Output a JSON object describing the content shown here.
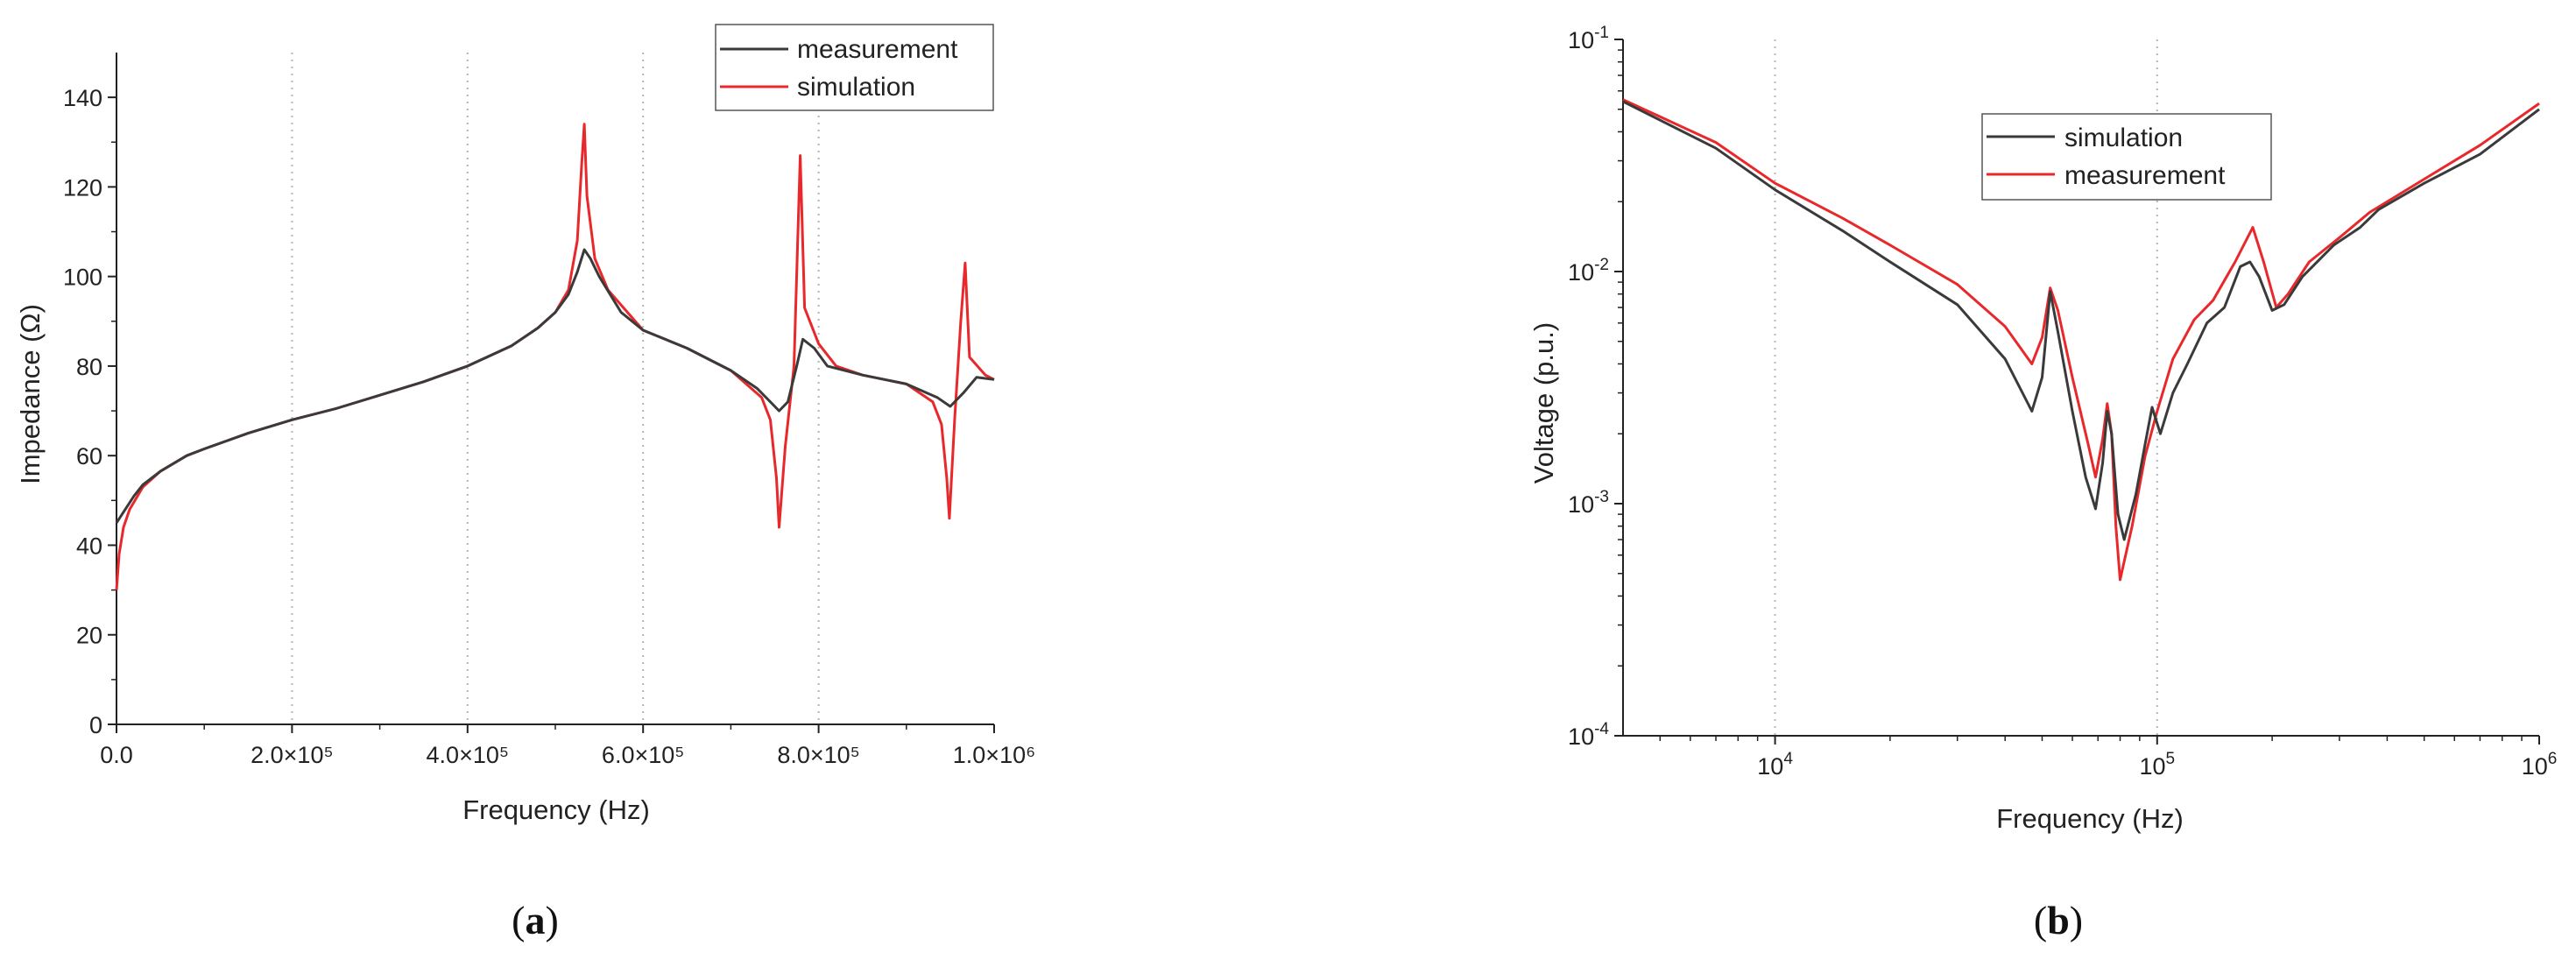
{
  "chart_data": [
    {
      "type": "line",
      "panel_label": "a",
      "xlabel": "Frequency (Hz)",
      "ylabel": "Impedance (Ω)",
      "xlim": [
        0,
        1000000
      ],
      "ylim": [
        0,
        150
      ],
      "xscale": "linear",
      "yscale": "linear",
      "x_ticks": [
        {
          "value": 0,
          "label": "0.0"
        },
        {
          "value": 200000,
          "label": "2.0×10⁵"
        },
        {
          "value": 400000,
          "label": "4.0×10⁵"
        },
        {
          "value": 600000,
          "label": "6.0×10⁵"
        },
        {
          "value": 800000,
          "label": "8.0×10⁵"
        },
        {
          "value": 1000000,
          "label": "1.0×10⁶"
        }
      ],
      "y_ticks": [
        {
          "value": 0,
          "label": "0"
        },
        {
          "value": 20,
          "label": "20"
        },
        {
          "value": 40,
          "label": "40"
        },
        {
          "value": 60,
          "label": "60"
        },
        {
          "value": 80,
          "label": "80"
        },
        {
          "value": 100,
          "label": "100"
        },
        {
          "value": 120,
          "label": "120"
        },
        {
          "value": 140,
          "label": "140"
        }
      ],
      "grid": "vertical dotted lines at x ticks",
      "legend_position": "top-right",
      "series": [
        {
          "name": "measurement",
          "color": "#3a3a3a",
          "points": [
            [
              0,
              45
            ],
            [
              10000,
              48
            ],
            [
              20000,
              51
            ],
            [
              30000,
              53.5
            ],
            [
              50000,
              56.5
            ],
            [
              80000,
              60
            ],
            [
              100000,
              61.5
            ],
            [
              150000,
              65
            ],
            [
              200000,
              68
            ],
            [
              250000,
              70.5
            ],
            [
              300000,
              73.5
            ],
            [
              350000,
              76.5
            ],
            [
              400000,
              80
            ],
            [
              450000,
              84.5
            ],
            [
              480000,
              88.5
            ],
            [
              500000,
              92
            ],
            [
              515000,
              96
            ],
            [
              525000,
              101
            ],
            [
              533000,
              106
            ],
            [
              540000,
              104
            ],
            [
              550000,
              100
            ],
            [
              575000,
              92
            ],
            [
              600000,
              88
            ],
            [
              650000,
              84
            ],
            [
              700000,
              79
            ],
            [
              730000,
              75
            ],
            [
              745000,
              72
            ],
            [
              755000,
              70
            ],
            [
              765000,
              72
            ],
            [
              775000,
              80
            ],
            [
              782000,
              86
            ],
            [
              795000,
              84
            ],
            [
              810000,
              80
            ],
            [
              850000,
              78
            ],
            [
              900000,
              76
            ],
            [
              935000,
              73
            ],
            [
              950000,
              71
            ],
            [
              965000,
              74
            ],
            [
              980000,
              77.5
            ],
            [
              1000000,
              77
            ]
          ]
        },
        {
          "name": "simulation",
          "color": "#e8282a",
          "points": [
            [
              0,
              30
            ],
            [
              3000,
              38
            ],
            [
              8000,
              44
            ],
            [
              15000,
              48
            ],
            [
              30000,
              53
            ],
            [
              50000,
              56.5
            ],
            [
              80000,
              60
            ],
            [
              100000,
              61.5
            ],
            [
              150000,
              65
            ],
            [
              200000,
              68
            ],
            [
              250000,
              70.5
            ],
            [
              300000,
              73.5
            ],
            [
              350000,
              76.5
            ],
            [
              400000,
              80
            ],
            [
              450000,
              84.5
            ],
            [
              480000,
              88.5
            ],
            [
              500000,
              92
            ],
            [
              515000,
              97
            ],
            [
              525000,
              108
            ],
            [
              530000,
              125
            ],
            [
              533000,
              134
            ],
            [
              536000,
              118
            ],
            [
              545000,
              104
            ],
            [
              560000,
              97
            ],
            [
              600000,
              88
            ],
            [
              650000,
              84
            ],
            [
              700000,
              79
            ],
            [
              735000,
              73
            ],
            [
              745000,
              68
            ],
            [
              752000,
              55
            ],
            [
              755000,
              44
            ],
            [
              762000,
              62
            ],
            [
              772000,
              80
            ],
            [
              779000,
              127
            ],
            [
              784000,
              93
            ],
            [
              800000,
              85
            ],
            [
              820000,
              80
            ],
            [
              850000,
              78
            ],
            [
              900000,
              76
            ],
            [
              930000,
              72
            ],
            [
              940000,
              67
            ],
            [
              946000,
              55
            ],
            [
              949000,
              46
            ],
            [
              955000,
              68
            ],
            [
              962000,
              90
            ],
            [
              967000,
              103
            ],
            [
              972000,
              82
            ],
            [
              990000,
              78
            ],
            [
              1000000,
              77
            ]
          ]
        }
      ]
    },
    {
      "type": "line",
      "panel_label": "b",
      "xlabel": "Frequency (Hz)",
      "ylabel": "Voltage (p.u.)",
      "xlim": [
        4000,
        1000000
      ],
      "ylim": [
        0.0001,
        0.1
      ],
      "xscale": "log",
      "yscale": "log",
      "x_ticks": [
        {
          "value": 10000,
          "base": "10",
          "exp": "4"
        },
        {
          "value": 100000,
          "base": "10",
          "exp": "5"
        },
        {
          "value": 1000000,
          "base": "10",
          "exp": "6"
        }
      ],
      "y_ticks": [
        {
          "value": 0.0001,
          "base": "10",
          "exp": "-4"
        },
        {
          "value": 0.001,
          "base": "10",
          "exp": "-3"
        },
        {
          "value": 0.01,
          "base": "10",
          "exp": "-2"
        },
        {
          "value": 0.1,
          "base": "10",
          "exp": "-1"
        }
      ],
      "grid": "vertical dotted lines at decade ticks",
      "legend_position": "upper-center",
      "series": [
        {
          "name": "simulation",
          "color": "#3a3a3a",
          "points": [
            [
              4000,
              0.054
            ],
            [
              7000,
              0.034
            ],
            [
              10000,
              0.0225
            ],
            [
              15000,
              0.015
            ],
            [
              20000,
              0.011
            ],
            [
              30000,
              0.0072
            ],
            [
              40000,
              0.0042
            ],
            [
              47000,
              0.0025
            ],
            [
              50000,
              0.0035
            ],
            [
              52500,
              0.0082
            ],
            [
              55000,
              0.0055
            ],
            [
              60000,
              0.0025
            ],
            [
              65000,
              0.0013
            ],
            [
              69000,
              0.00095
            ],
            [
              72000,
              0.0015
            ],
            [
              74000,
              0.0025
            ],
            [
              76000,
              0.002
            ],
            [
              79000,
              0.0009
            ],
            [
              82000,
              0.0007
            ],
            [
              88000,
              0.0011
            ],
            [
              93000,
              0.0018
            ],
            [
              97000,
              0.0026
            ],
            [
              102000,
              0.002
            ],
            [
              110000,
              0.003
            ],
            [
              120000,
              0.004
            ],
            [
              135000,
              0.006
            ],
            [
              150000,
              0.007
            ],
            [
              165000,
              0.0105
            ],
            [
              175000,
              0.011
            ],
            [
              185000,
              0.0095
            ],
            [
              200000,
              0.0068
            ],
            [
              215000,
              0.0072
            ],
            [
              240000,
              0.0095
            ],
            [
              290000,
              0.013
            ],
            [
              340000,
              0.0155
            ],
            [
              380000,
              0.0185
            ],
            [
              500000,
              0.024
            ],
            [
              700000,
              0.032
            ],
            [
              1000000,
              0.05
            ]
          ]
        },
        {
          "name": "measurement",
          "color": "#e8282a",
          "points": [
            [
              4000,
              0.055
            ],
            [
              7000,
              0.036
            ],
            [
              10000,
              0.024
            ],
            [
              15000,
              0.017
            ],
            [
              20000,
              0.013
            ],
            [
              30000,
              0.0088
            ],
            [
              40000,
              0.0058
            ],
            [
              47000,
              0.004
            ],
            [
              50000,
              0.0052
            ],
            [
              52500,
              0.0085
            ],
            [
              55000,
              0.0068
            ],
            [
              60000,
              0.0035
            ],
            [
              66000,
              0.0018
            ],
            [
              69000,
              0.0013
            ],
            [
              72000,
              0.0019
            ],
            [
              74000,
              0.0027
            ],
            [
              76000,
              0.002
            ],
            [
              78000,
              0.0008
            ],
            [
              80000,
              0.00047
            ],
            [
              86000,
              0.0008
            ],
            [
              93000,
              0.0016
            ],
            [
              100000,
              0.0025
            ],
            [
              110000,
              0.0042
            ],
            [
              125000,
              0.0062
            ],
            [
              140000,
              0.0075
            ],
            [
              160000,
              0.011
            ],
            [
              178000,
              0.0155
            ],
            [
              190000,
              0.011
            ],
            [
              205000,
              0.007
            ],
            [
              220000,
              0.008
            ],
            [
              250000,
              0.011
            ],
            [
              300000,
              0.014
            ],
            [
              360000,
              0.018
            ],
            [
              500000,
              0.025
            ],
            [
              700000,
              0.035
            ],
            [
              1000000,
              0.053
            ]
          ]
        }
      ]
    }
  ]
}
